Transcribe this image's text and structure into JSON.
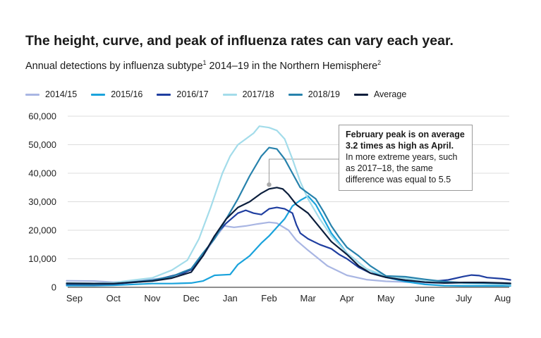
{
  "header": {
    "title": "The height, curve, and peak of influenza rates can vary each year.",
    "subtitle_main": "Annual detections by influenza subtype",
    "subtitle_sup1": "1",
    "subtitle_mid": " 2014–19 in the Northern Hemisphere",
    "subtitle_sup2": "2"
  },
  "annotation": {
    "bold_text": "February peak is on average 3.2 times as high as April.",
    "body_text": "In more extreme years, such as 2017–18, the same difference was equal to 5.5"
  },
  "chart_data": {
    "type": "line",
    "title": "The height, curve, and peak of influenza rates can vary each year.",
    "subtitle": "Annual detections by influenza subtype 2014–19 in the Northern Hemisphere",
    "xlabel": "",
    "ylabel": "",
    "x_categories": [
      "Sep",
      "Oct",
      "Nov",
      "Dec",
      "Jan",
      "Feb",
      "Mar",
      "Apr",
      "May",
      "June",
      "July",
      "Aug"
    ],
    "ylim": [
      0,
      60000
    ],
    "yticks": [
      0,
      10000,
      20000,
      30000,
      40000,
      50000,
      60000
    ],
    "ytick_labels": [
      "0",
      "10,000",
      "20,000",
      "30,000",
      "40,000",
      "50,000",
      "60,000"
    ],
    "grid": "horizontal",
    "legend_position": "top",
    "x_unit_note": "x values in months since start of Sep (Sep = 0)",
    "series": [
      {
        "name": "2014/15",
        "color": "#a9b6e3",
        "points": [
          [
            -0.2,
            2300
          ],
          [
            0.5,
            2200
          ],
          [
            1,
            1800
          ],
          [
            1.5,
            2200
          ],
          [
            2,
            2800
          ],
          [
            2.5,
            3600
          ],
          [
            2.8,
            5500
          ],
          [
            3,
            6000
          ],
          [
            3.3,
            11000
          ],
          [
            3.6,
            17000
          ],
          [
            3.85,
            21500
          ],
          [
            4.1,
            21000
          ],
          [
            4.4,
            21500
          ],
          [
            4.7,
            22200
          ],
          [
            5,
            22800
          ],
          [
            5.2,
            22500
          ],
          [
            5.5,
            20000
          ],
          [
            5.7,
            16500
          ],
          [
            6,
            13000
          ],
          [
            6.5,
            7500
          ],
          [
            7,
            4200
          ],
          [
            7.5,
            2700
          ],
          [
            8,
            2100
          ],
          [
            9,
            1600
          ],
          [
            10,
            1400
          ],
          [
            11,
            1300
          ],
          [
            11.2,
            1300
          ]
        ]
      },
      {
        "name": "2015/16",
        "color": "#1aa3dc",
        "points": [
          [
            -0.2,
            600
          ],
          [
            0.5,
            600
          ],
          [
            1,
            700
          ],
          [
            2,
            1300
          ],
          [
            2.5,
            1300
          ],
          [
            3,
            1500
          ],
          [
            3.3,
            2200
          ],
          [
            3.6,
            4200
          ],
          [
            4,
            4500
          ],
          [
            4.2,
            8000
          ],
          [
            4.5,
            11000
          ],
          [
            4.8,
            15500
          ],
          [
            5,
            18000
          ],
          [
            5.2,
            21000
          ],
          [
            5.4,
            24000
          ],
          [
            5.6,
            28500
          ],
          [
            5.8,
            30500
          ],
          [
            6,
            32000
          ],
          [
            6.2,
            29000
          ],
          [
            6.4,
            24000
          ],
          [
            6.6,
            19000
          ],
          [
            7,
            12000
          ],
          [
            7.5,
            6500
          ],
          [
            8,
            3500
          ],
          [
            8.5,
            2000
          ],
          [
            9,
            1000
          ],
          [
            9.5,
            600
          ],
          [
            10,
            500
          ],
          [
            11,
            500
          ],
          [
            11.2,
            500
          ]
        ]
      },
      {
        "name": "2016/17",
        "color": "#1f3ea0",
        "points": [
          [
            -0.2,
            1000
          ],
          [
            0.5,
            900
          ],
          [
            1,
            1100
          ],
          [
            2,
            2300
          ],
          [
            2.5,
            4000
          ],
          [
            2.8,
            5000
          ],
          [
            3,
            6200
          ],
          [
            3.3,
            11000
          ],
          [
            3.6,
            18000
          ],
          [
            3.9,
            22500
          ],
          [
            4.2,
            26000
          ],
          [
            4.4,
            27000
          ],
          [
            4.6,
            26000
          ],
          [
            4.8,
            25500
          ],
          [
            5,
            27500
          ],
          [
            5.2,
            28000
          ],
          [
            5.4,
            27500
          ],
          [
            5.6,
            26000
          ],
          [
            5.7,
            22000
          ],
          [
            5.8,
            19000
          ],
          [
            6,
            17000
          ],
          [
            6.3,
            15000
          ],
          [
            6.6,
            13500
          ],
          [
            6.8,
            11500
          ],
          [
            7,
            10000
          ],
          [
            7.3,
            7000
          ],
          [
            7.6,
            5000
          ],
          [
            8,
            3500
          ],
          [
            8.5,
            2400
          ],
          [
            9,
            2000
          ],
          [
            9.3,
            2200
          ],
          [
            9.6,
            2600
          ],
          [
            10,
            3800
          ],
          [
            10.2,
            4300
          ],
          [
            10.4,
            4100
          ],
          [
            10.6,
            3400
          ],
          [
            11,
            3000
          ],
          [
            11.2,
            2600
          ]
        ]
      },
      {
        "name": "2017/18",
        "color": "#a3dcea",
        "points": [
          [
            -0.2,
            1500
          ],
          [
            0.5,
            1400
          ],
          [
            1,
            1600
          ],
          [
            1.5,
            2500
          ],
          [
            2,
            3300
          ],
          [
            2.5,
            6000
          ],
          [
            2.9,
            9500
          ],
          [
            3.2,
            17000
          ],
          [
            3.5,
            28000
          ],
          [
            3.8,
            40000
          ],
          [
            4,
            46000
          ],
          [
            4.2,
            50000
          ],
          [
            4.4,
            52000
          ],
          [
            4.6,
            54000
          ],
          [
            4.75,
            56500
          ],
          [
            5,
            56000
          ],
          [
            5.2,
            55000
          ],
          [
            5.4,
            52000
          ],
          [
            5.6,
            45000
          ],
          [
            5.8,
            37000
          ],
          [
            6,
            31000
          ],
          [
            6.3,
            24000
          ],
          [
            6.6,
            18000
          ],
          [
            7,
            12000
          ],
          [
            7.5,
            6500
          ],
          [
            8,
            4000
          ],
          [
            9,
            2200
          ],
          [
            10,
            1300
          ],
          [
            11,
            1000
          ],
          [
            11.2,
            900
          ]
        ]
      },
      {
        "name": "2018/19",
        "color": "#2782ac",
        "points": [
          [
            -0.2,
            1200
          ],
          [
            0.5,
            1000
          ],
          [
            1,
            1200
          ],
          [
            2,
            2500
          ],
          [
            2.5,
            3800
          ],
          [
            3,
            6500
          ],
          [
            3.3,
            12000
          ],
          [
            3.6,
            17000
          ],
          [
            3.9,
            24000
          ],
          [
            4.2,
            31000
          ],
          [
            4.5,
            39000
          ],
          [
            4.8,
            46000
          ],
          [
            5,
            49000
          ],
          [
            5.2,
            48500
          ],
          [
            5.4,
            45000
          ],
          [
            5.6,
            40000
          ],
          [
            5.8,
            35000
          ],
          [
            6,
            33000
          ],
          [
            6.2,
            31000
          ],
          [
            6.4,
            26500
          ],
          [
            6.6,
            21500
          ],
          [
            6.8,
            17500
          ],
          [
            7,
            14000
          ],
          [
            7.3,
            11000
          ],
          [
            7.6,
            7500
          ],
          [
            8,
            4000
          ],
          [
            8.5,
            3700
          ],
          [
            9,
            2800
          ],
          [
            9.5,
            2000
          ],
          [
            10,
            1600
          ],
          [
            10.5,
            1500
          ],
          [
            11,
            1300
          ],
          [
            11.2,
            1200
          ]
        ]
      },
      {
        "name": "Average",
        "color": "#0b1e3c",
        "points": [
          [
            -0.2,
            1400
          ],
          [
            0.5,
            1300
          ],
          [
            1,
            1300
          ],
          [
            2,
            2200
          ],
          [
            2.5,
            3200
          ],
          [
            3,
            5300
          ],
          [
            3.3,
            11000
          ],
          [
            3.6,
            18000
          ],
          [
            3.9,
            24000
          ],
          [
            4.2,
            28000
          ],
          [
            4.5,
            30000
          ],
          [
            4.8,
            33000
          ],
          [
            5,
            34500
          ],
          [
            5.2,
            35000
          ],
          [
            5.35,
            34500
          ],
          [
            5.5,
            32500
          ],
          [
            5.7,
            29000
          ],
          [
            6,
            26000
          ],
          [
            6.3,
            21000
          ],
          [
            6.6,
            16000
          ],
          [
            7,
            11500
          ],
          [
            7.3,
            7500
          ],
          [
            7.6,
            5000
          ],
          [
            8,
            3500
          ],
          [
            8.5,
            2500
          ],
          [
            9,
            1800
          ],
          [
            9.5,
            1500
          ],
          [
            10,
            1700
          ],
          [
            10.5,
            1700
          ],
          [
            11,
            1500
          ],
          [
            11.2,
            1400
          ]
        ]
      }
    ],
    "annotation_marker": {
      "x": 5.0,
      "y": 36000
    }
  }
}
